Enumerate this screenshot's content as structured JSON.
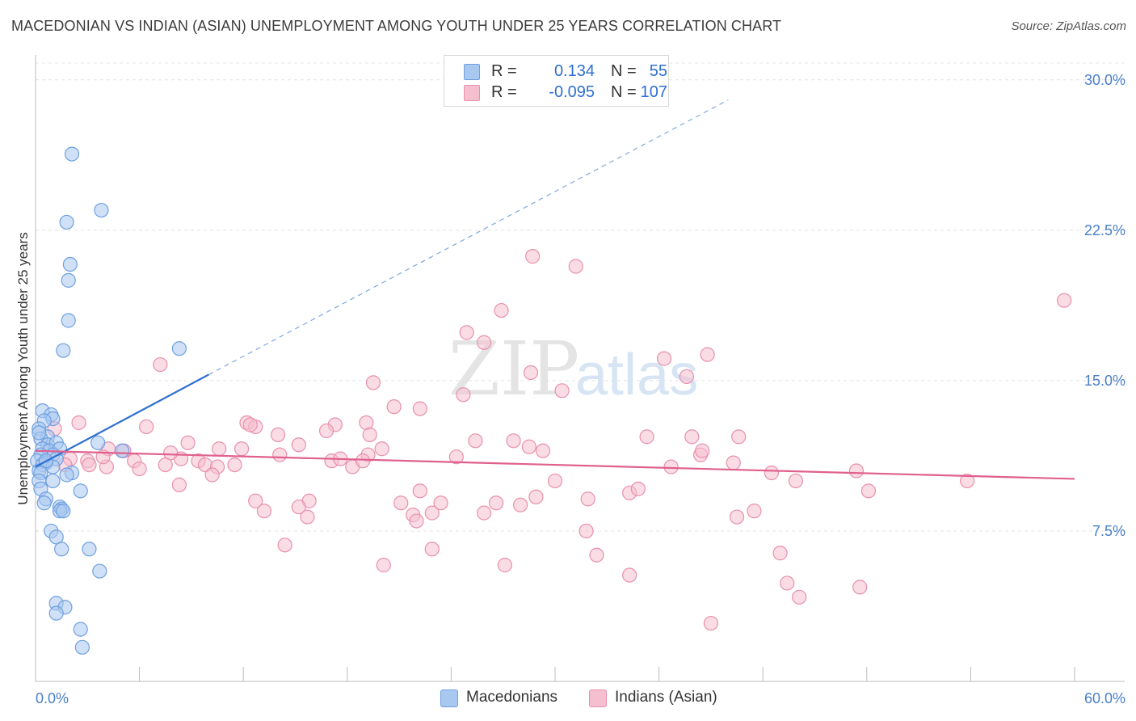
{
  "title": "MACEDONIAN VS INDIAN (ASIAN) UNEMPLOYMENT AMONG YOUTH UNDER 25 YEARS CORRELATION CHART",
  "source": "Source: ZipAtlas.com",
  "watermark": {
    "zip": "ZIP",
    "atlas": "atlas"
  },
  "legend_top": {
    "rows": [
      {
        "label": "R =",
        "r": "0.134",
        "n_label": "N =",
        "n": "55",
        "color": "#a9c8f0",
        "border": "#6fa0e0"
      },
      {
        "label": "R =",
        "r": "-0.095",
        "n_label": "N =",
        "n": "107",
        "color": "#f6bfd0",
        "border": "#e890ad"
      }
    ]
  },
  "legend_bottom": [
    {
      "label": "Macedonians",
      "color": "#a9c8f0",
      "border": "#6fa0e0"
    },
    {
      "label": "Indians (Asian)",
      "color": "#f6bfd0",
      "border": "#e890ad"
    }
  ],
  "chart_data": {
    "type": "scatter",
    "title": "MACEDONIAN VS INDIAN (ASIAN) UNEMPLOYMENT AMONG YOUTH UNDER 25 YEARS CORRELATION CHART",
    "xlabel": "",
    "ylabel": "Unemployment Among Youth under 25 years",
    "xlim": [
      0,
      60
    ],
    "ylim": [
      0,
      31
    ],
    "x_tick_labels": [
      "0.0%",
      "60.0%"
    ],
    "y_ticks": [
      7.5,
      15.0,
      22.5,
      30.0
    ],
    "y_tick_labels": [
      "7.5%",
      "15.0%",
      "22.5%",
      "30.0%"
    ],
    "series": [
      {
        "name": "Macedonians",
        "color": "#6fa0e0",
        "fill": "#a9c8f0",
        "trend": {
          "x0": 0,
          "y0": 10.7,
          "x1": 10,
          "y1": 15.3,
          "dash_to_x": 40,
          "dash_to_y": 29.0,
          "color": "#2d6fd0"
        },
        "points": [
          [
            2.1,
            26.3
          ],
          [
            3.8,
            23.5
          ],
          [
            1.8,
            22.9
          ],
          [
            2.0,
            20.8
          ],
          [
            1.9,
            20.0
          ],
          [
            1.9,
            18.0
          ],
          [
            1.6,
            16.5
          ],
          [
            8.3,
            16.6
          ],
          [
            0.4,
            13.5
          ],
          [
            0.9,
            13.3
          ],
          [
            1.0,
            13.1
          ],
          [
            0.5,
            13.0
          ],
          [
            0.2,
            12.6
          ],
          [
            0.7,
            12.2
          ],
          [
            0.3,
            12.1
          ],
          [
            0.7,
            11.8
          ],
          [
            1.2,
            11.9
          ],
          [
            3.6,
            11.9
          ],
          [
            0.4,
            11.6
          ],
          [
            0.8,
            11.5
          ],
          [
            1.4,
            11.6
          ],
          [
            1.0,
            11.3
          ],
          [
            5.0,
            11.5
          ],
          [
            0.3,
            11.3
          ],
          [
            0.1,
            11.0
          ],
          [
            1.2,
            11.1
          ],
          [
            0.6,
            10.9
          ],
          [
            0.4,
            10.8
          ],
          [
            1.0,
            10.7
          ],
          [
            0.2,
            10.5
          ],
          [
            0.3,
            10.4
          ],
          [
            2.1,
            10.4
          ],
          [
            1.8,
            10.3
          ],
          [
            0.2,
            10.0
          ],
          [
            1.0,
            10.0
          ],
          [
            0.3,
            9.6
          ],
          [
            2.6,
            9.5
          ],
          [
            0.6,
            9.1
          ],
          [
            0.5,
            8.9
          ],
          [
            1.4,
            8.7
          ],
          [
            1.5,
            8.6
          ],
          [
            1.4,
            8.5
          ],
          [
            1.6,
            8.5
          ],
          [
            0.9,
            7.5
          ],
          [
            1.2,
            7.2
          ],
          [
            1.5,
            6.6
          ],
          [
            3.1,
            6.6
          ],
          [
            3.7,
            5.5
          ],
          [
            1.2,
            3.9
          ],
          [
            1.7,
            3.7
          ],
          [
            1.2,
            3.4
          ],
          [
            2.6,
            2.6
          ],
          [
            2.7,
            1.7
          ],
          [
            0.2,
            12.4
          ],
          [
            0.6,
            11.0
          ]
        ]
      },
      {
        "name": "Indians (Asian)",
        "color": "#e890ad",
        "fill": "#f6bfd0",
        "trend": {
          "x0": 0,
          "y0": 11.5,
          "x1": 60,
          "y1": 10.1,
          "color": "#e0608e"
        },
        "points": [
          [
            28.7,
            21.2
          ],
          [
            31.2,
            20.7
          ],
          [
            26.9,
            18.5
          ],
          [
            59.4,
            19.0
          ],
          [
            24.9,
            17.4
          ],
          [
            25.9,
            16.9
          ],
          [
            7.2,
            15.8
          ],
          [
            36.3,
            16.1
          ],
          [
            38.8,
            16.3
          ],
          [
            28.6,
            15.4
          ],
          [
            37.6,
            15.2
          ],
          [
            19.5,
            14.9
          ],
          [
            24.7,
            14.3
          ],
          [
            30.4,
            14.5
          ],
          [
            20.7,
            13.7
          ],
          [
            22.2,
            13.6
          ],
          [
            12.2,
            12.9
          ],
          [
            17.3,
            12.8
          ],
          [
            19.1,
            12.9
          ],
          [
            6.4,
            12.7
          ],
          [
            12.7,
            12.7
          ],
          [
            16.8,
            12.5
          ],
          [
            14.0,
            12.3
          ],
          [
            25.4,
            12.0
          ],
          [
            35.3,
            12.2
          ],
          [
            37.9,
            12.2
          ],
          [
            40.6,
            12.2
          ],
          [
            8.8,
            11.9
          ],
          [
            15.2,
            11.8
          ],
          [
            4.2,
            11.6
          ],
          [
            5.1,
            11.5
          ],
          [
            10.6,
            11.6
          ],
          [
            11.9,
            11.6
          ],
          [
            20.0,
            11.6
          ],
          [
            28.5,
            11.7
          ],
          [
            29.3,
            11.5
          ],
          [
            2.0,
            11.1
          ],
          [
            3.0,
            11.0
          ],
          [
            5.7,
            11.0
          ],
          [
            8.4,
            11.1
          ],
          [
            9.4,
            11.0
          ],
          [
            14.1,
            11.3
          ],
          [
            17.1,
            11.0
          ],
          [
            17.6,
            11.1
          ],
          [
            19.2,
            11.3
          ],
          [
            24.3,
            11.2
          ],
          [
            38.4,
            11.3
          ],
          [
            40.3,
            10.9
          ],
          [
            1.7,
            10.8
          ],
          [
            3.1,
            10.8
          ],
          [
            4.1,
            10.7
          ],
          [
            6.0,
            10.6
          ],
          [
            7.5,
            10.8
          ],
          [
            9.8,
            10.8
          ],
          [
            10.5,
            10.7
          ],
          [
            11.5,
            10.8
          ],
          [
            18.3,
            10.7
          ],
          [
            36.7,
            10.7
          ],
          [
            42.5,
            10.4
          ],
          [
            47.4,
            10.5
          ],
          [
            30.0,
            10.0
          ],
          [
            43.9,
            10.0
          ],
          [
            53.8,
            10.0
          ],
          [
            8.3,
            9.8
          ],
          [
            10.2,
            10.3
          ],
          [
            22.2,
            9.5
          ],
          [
            34.3,
            9.4
          ],
          [
            28.9,
            9.2
          ],
          [
            31.9,
            9.1
          ],
          [
            48.1,
            9.5
          ],
          [
            12.7,
            9.0
          ],
          [
            15.8,
            9.0
          ],
          [
            21.1,
            8.9
          ],
          [
            23.4,
            8.9
          ],
          [
            26.6,
            8.9
          ],
          [
            28.0,
            8.8
          ],
          [
            13.2,
            8.5
          ],
          [
            15.2,
            8.7
          ],
          [
            15.7,
            8.2
          ],
          [
            21.8,
            8.3
          ],
          [
            22.0,
            8.0
          ],
          [
            22.9,
            8.4
          ],
          [
            25.9,
            8.4
          ],
          [
            40.5,
            8.2
          ],
          [
            41.5,
            8.5
          ],
          [
            31.8,
            7.5
          ],
          [
            14.4,
            6.8
          ],
          [
            22.9,
            6.6
          ],
          [
            32.4,
            6.3
          ],
          [
            43.0,
            6.4
          ],
          [
            20.1,
            5.8
          ],
          [
            27.1,
            5.8
          ],
          [
            34.3,
            5.3
          ],
          [
            43.4,
            4.9
          ],
          [
            47.6,
            4.7
          ],
          [
            44.1,
            4.2
          ],
          [
            39.0,
            2.9
          ],
          [
            19.3,
            12.3
          ],
          [
            38.5,
            11.5
          ],
          [
            3.9,
            11.2
          ],
          [
            12.4,
            12.8
          ],
          [
            1.1,
            12.6
          ],
          [
            2.5,
            12.9
          ],
          [
            27.6,
            12.0
          ],
          [
            18.9,
            11.0
          ],
          [
            7.8,
            11.4
          ],
          [
            34.8,
            9.6
          ]
        ]
      }
    ]
  }
}
